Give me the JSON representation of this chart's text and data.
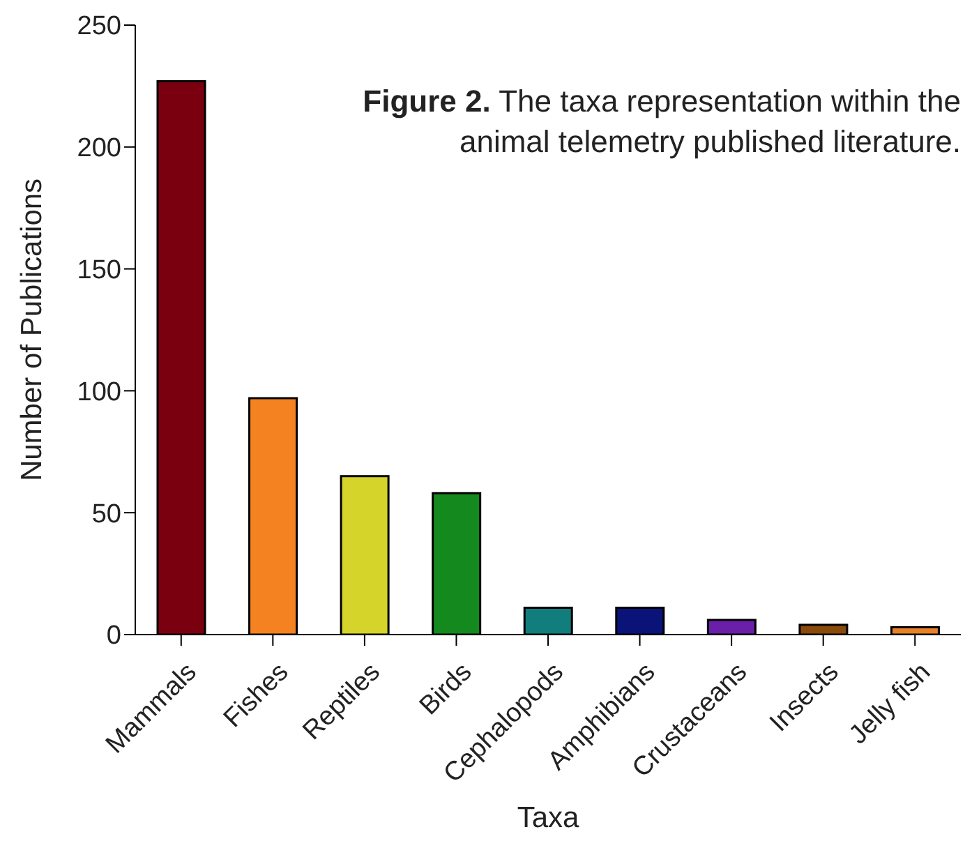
{
  "chart_data": {
    "type": "bar",
    "title": "Figure 2. The taxa representation within the animal telemetry published literature.",
    "xlabel": "Taxa",
    "ylabel": "Number of Publications",
    "categories": [
      "Mammals",
      "Fishes",
      "Reptiles",
      "Birds",
      "Cephalopods",
      "Amphibians",
      "Crustaceans",
      "Insects",
      "Jelly fish"
    ],
    "values": [
      227,
      97,
      65,
      58,
      11,
      11,
      6,
      4,
      3
    ],
    "colors": [
      "#7a0010",
      "#f58220",
      "#d4d42a",
      "#148a1e",
      "#117d7d",
      "#0a1478",
      "#6a1fa8",
      "#8a4a0a",
      "#e8822a"
    ],
    "ylim": [
      0,
      250
    ],
    "yticks": [
      0,
      50,
      100,
      150,
      200,
      250
    ],
    "grid": false,
    "legend": false
  }
}
